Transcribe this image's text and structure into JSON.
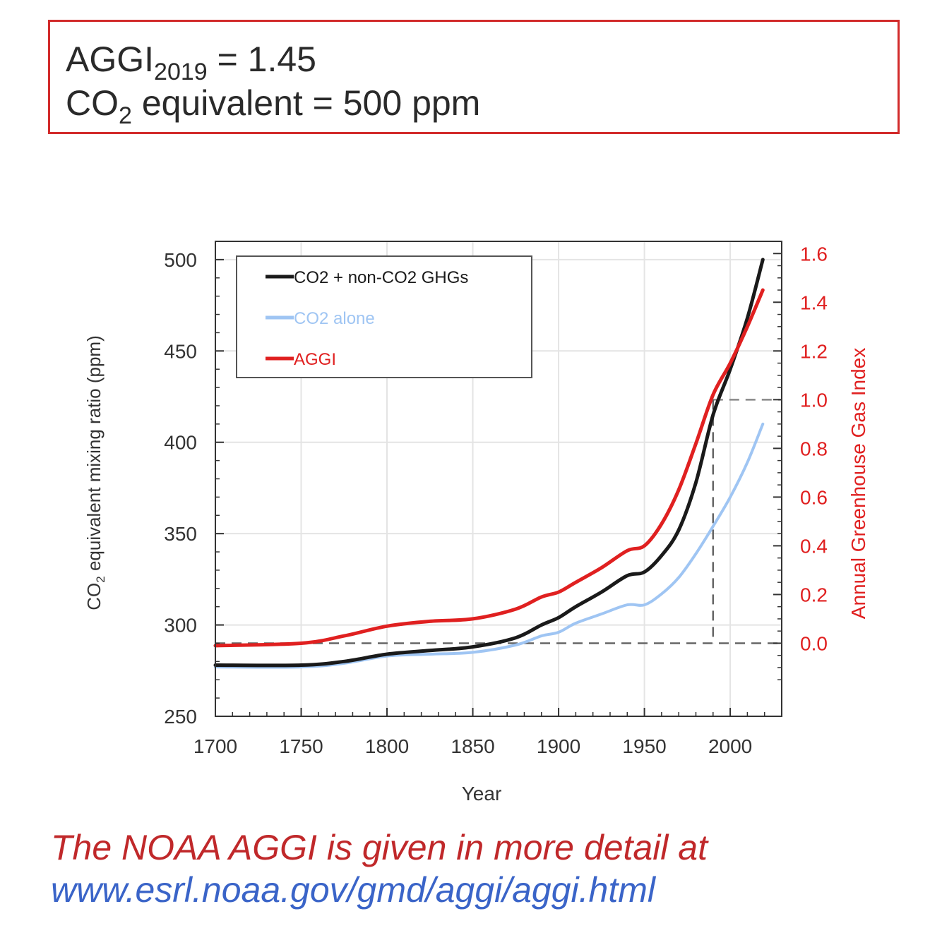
{
  "header": {
    "aggi_prefix": "AGGI",
    "aggi_sub": "2019",
    "aggi_suffix": " = 1.45",
    "co2_prefix": "CO",
    "co2_sub": "2",
    "co2_suffix": " equivalent = 500 ppm"
  },
  "chart_data": {
    "type": "line",
    "xlabel": "Year",
    "ylabel_left_prefix": "CO",
    "ylabel_left_sub": "2",
    "ylabel_left_suffix": " equivalent mixing ratio (ppm)",
    "ylabel_right": "Annual Greenhouse Gas Index",
    "xlim": [
      1700,
      2030
    ],
    "ylim_left": [
      250,
      510
    ],
    "ylim_right": [
      -0.3,
      1.65
    ],
    "x_ticks": [
      1700,
      1750,
      1800,
      1850,
      1900,
      1950,
      2000
    ],
    "y_ticks_left": [
      250,
      300,
      350,
      400,
      450,
      500
    ],
    "y_ticks_right": [
      "0.0",
      "0.2",
      "0.4",
      "0.6",
      "0.8",
      "1.0",
      "1.2",
      "1.4",
      "1.6"
    ],
    "grid": true,
    "legend_position": "top-left",
    "reference_year": 1990,
    "reference_aggi": 1.0,
    "series": [
      {
        "name": "CO2 + non-CO2 GHGs",
        "axis": "left",
        "color": "#1a1a1a",
        "x": [
          1700,
          1750,
          1775,
          1800,
          1825,
          1850,
          1875,
          1890,
          1900,
          1910,
          1925,
          1940,
          1950,
          1960,
          1970,
          1980,
          1990,
          2000,
          2010,
          2019
        ],
        "y": [
          278,
          278,
          280,
          284,
          286,
          288,
          293,
          300,
          304,
          310,
          318,
          327,
          329,
          338,
          352,
          378,
          415,
          440,
          468,
          500
        ]
      },
      {
        "name": "CO2 alone",
        "axis": "left",
        "color": "#9fc5f3",
        "x": [
          1700,
          1750,
          1775,
          1800,
          1825,
          1850,
          1875,
          1890,
          1900,
          1910,
          1925,
          1940,
          1950,
          1960,
          1970,
          1980,
          1990,
          2000,
          2010,
          2019
        ],
        "y": [
          277,
          277,
          279,
          283,
          284,
          285,
          289,
          294,
          296,
          301,
          306,
          311,
          311,
          317,
          326,
          339,
          354,
          370,
          389,
          410
        ]
      },
      {
        "name": "AGGI",
        "axis": "right",
        "color": "#e02020",
        "x": [
          1700,
          1750,
          1775,
          1800,
          1825,
          1850,
          1875,
          1890,
          1900,
          1910,
          1925,
          1940,
          1950,
          1960,
          1970,
          1980,
          1990,
          2000,
          2010,
          2019
        ],
        "y": [
          -0.01,
          0.0,
          0.03,
          0.07,
          0.09,
          0.1,
          0.14,
          0.19,
          0.21,
          0.25,
          0.31,
          0.38,
          0.4,
          0.49,
          0.63,
          0.82,
          1.02,
          1.15,
          1.3,
          1.45
        ]
      }
    ]
  },
  "footer": {
    "line1": "The NOAA AGGI is given in more detail at",
    "line2": "www.esrl.noaa.gov/gmd/aggi/aggi.html"
  }
}
